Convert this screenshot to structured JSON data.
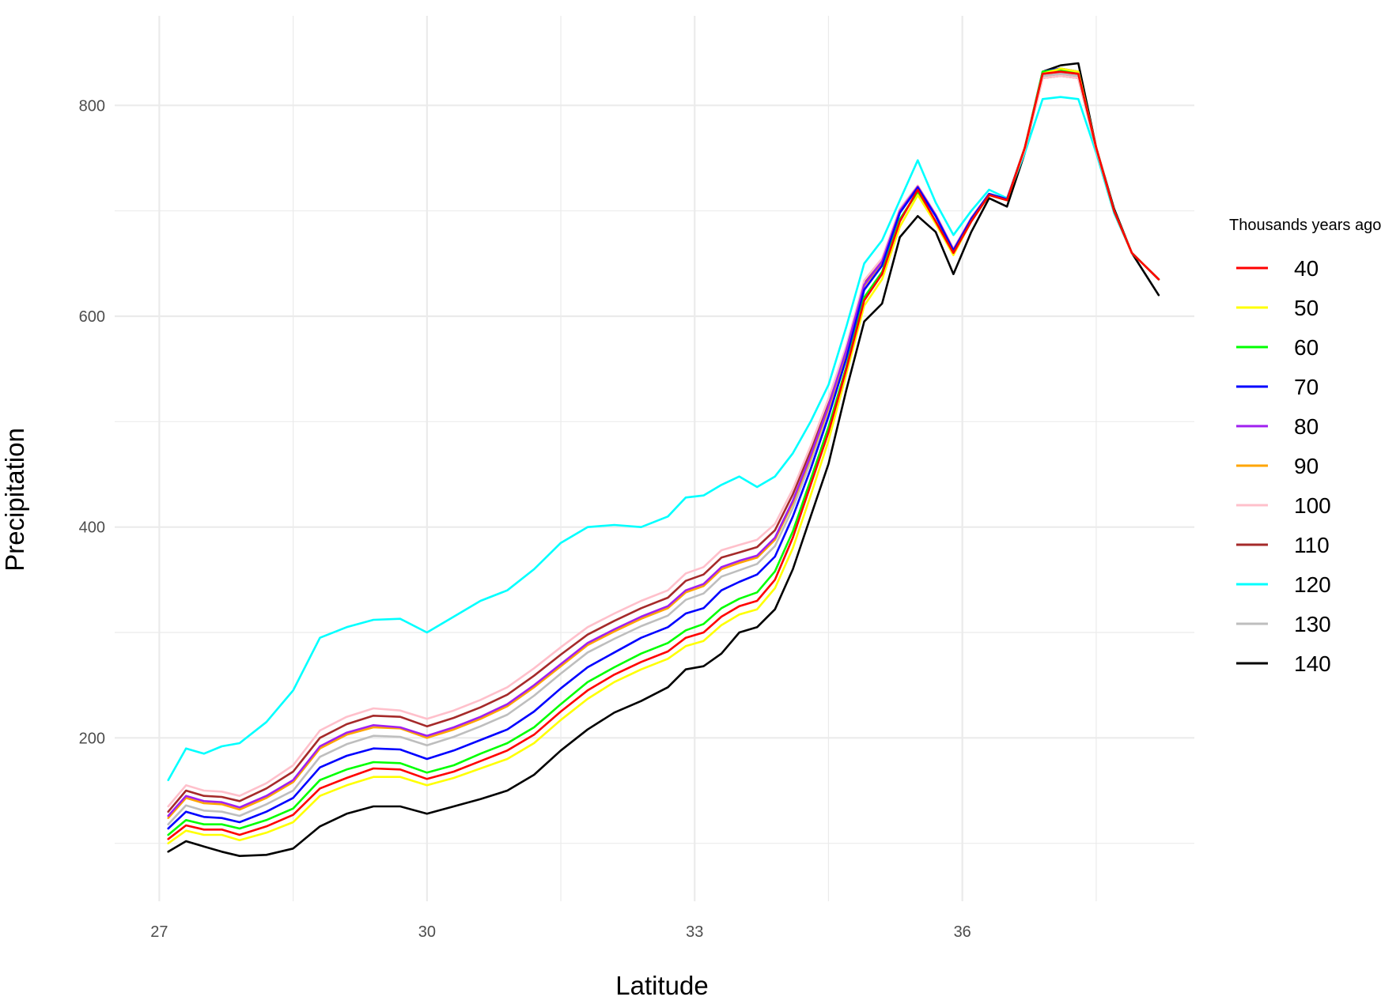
{
  "chart_data": {
    "type": "line",
    "xlabel": "Latitude",
    "ylabel": "Precipitation",
    "legend_title": "Thousands years ago",
    "legend_position": "right",
    "grid": true,
    "xlim": [
      26.5,
      38.6
    ],
    "ylim": [
      45,
      885
    ],
    "xticks": [
      27,
      30,
      33,
      36
    ],
    "yticks": [
      200,
      400,
      600,
      800
    ],
    "x": [
      27.1,
      27.3,
      27.5,
      27.7,
      27.9,
      28.2,
      28.5,
      28.8,
      29.1,
      29.4,
      29.7,
      30.0,
      30.3,
      30.6,
      30.9,
      31.2,
      31.5,
      31.8,
      32.1,
      32.4,
      32.7,
      32.9,
      33.1,
      33.3,
      33.5,
      33.7,
      33.9,
      34.1,
      34.3,
      34.5,
      34.7,
      34.9,
      35.1,
      35.3,
      35.5,
      35.7,
      35.9,
      36.1,
      36.3,
      36.5,
      36.7,
      36.9,
      37.1,
      37.3,
      37.5,
      37.7,
      37.9,
      38.2
    ],
    "series": [
      {
        "name": "40",
        "color": "#ff0000",
        "values": [
          104,
          117,
          113,
          113,
          108,
          116,
          127,
          152,
          162,
          171,
          170,
          161,
          168,
          178,
          188,
          203,
          225,
          245,
          260,
          272,
          282,
          295,
          300,
          315,
          325,
          330,
          350,
          390,
          440,
          490,
          550,
          615,
          640,
          690,
          720,
          690,
          660,
          690,
          715,
          710,
          760,
          830,
          832,
          830,
          760,
          700,
          660,
          635
        ]
      },
      {
        "name": "50",
        "color": "#ffff00",
        "values": [
          100,
          112,
          108,
          108,
          103,
          110,
          120,
          145,
          155,
          163,
          163,
          155,
          162,
          171,
          180,
          195,
          217,
          237,
          253,
          265,
          275,
          287,
          292,
          307,
          317,
          322,
          342,
          380,
          430,
          482,
          545,
          610,
          635,
          685,
          715,
          688,
          658,
          690,
          715,
          710,
          760,
          830,
          835,
          832,
          760,
          700,
          660,
          635
        ]
      },
      {
        "name": "60",
        "color": "#00ff00",
        "values": [
          108,
          122,
          118,
          118,
          114,
          122,
          133,
          160,
          170,
          177,
          176,
          167,
          174,
          185,
          195,
          210,
          232,
          253,
          267,
          280,
          290,
          302,
          308,
          323,
          332,
          338,
          358,
          396,
          445,
          495,
          552,
          618,
          642,
          692,
          718,
          690,
          660,
          690,
          715,
          710,
          760,
          832,
          834,
          830,
          760,
          700,
          660,
          635
        ]
      },
      {
        "name": "70",
        "color": "#0000ff",
        "values": [
          114,
          130,
          125,
          124,
          120,
          130,
          143,
          172,
          183,
          190,
          189,
          180,
          188,
          198,
          208,
          225,
          247,
          267,
          281,
          295,
          305,
          318,
          323,
          340,
          348,
          355,
          372,
          410,
          455,
          505,
          560,
          625,
          648,
          698,
          722,
          695,
          662,
          692,
          716,
          711,
          760,
          832,
          835,
          832,
          760,
          700,
          660,
          635
        ]
      },
      {
        "name": "80",
        "color": "#a020f0",
        "values": [
          126,
          145,
          140,
          139,
          134,
          145,
          160,
          192,
          205,
          212,
          210,
          202,
          210,
          220,
          232,
          250,
          270,
          290,
          303,
          315,
          325,
          340,
          346,
          362,
          368,
          373,
          390,
          425,
          468,
          515,
          568,
          630,
          652,
          700,
          723,
          696,
          663,
          693,
          716,
          711,
          760,
          830,
          832,
          830,
          760,
          700,
          660,
          635
        ]
      },
      {
        "name": "90",
        "color": "#ffa500",
        "values": [
          124,
          143,
          138,
          137,
          132,
          143,
          158,
          190,
          203,
          210,
          209,
          200,
          208,
          218,
          230,
          248,
          268,
          288,
          301,
          313,
          323,
          338,
          344,
          360,
          366,
          371,
          388,
          423,
          466,
          513,
          566,
          629,
          651,
          700,
          723,
          696,
          663,
          693,
          716,
          711,
          760,
          830,
          832,
          830,
          760,
          700,
          660,
          635
        ]
      },
      {
        "name": "100",
        "color": "#ffc0cb",
        "values": [
          135,
          155,
          150,
          149,
          145,
          157,
          174,
          207,
          220,
          228,
          226,
          218,
          226,
          236,
          248,
          266,
          286,
          305,
          318,
          330,
          340,
          356,
          362,
          378,
          383,
          388,
          403,
          436,
          477,
          522,
          572,
          634,
          655,
          702,
          724,
          697,
          664,
          693,
          716,
          711,
          758,
          826,
          828,
          826,
          758,
          700,
          660,
          635
        ]
      },
      {
        "name": "110",
        "color": "#a52a2a",
        "values": [
          130,
          150,
          145,
          144,
          140,
          152,
          168,
          200,
          213,
          221,
          220,
          211,
          219,
          229,
          241,
          259,
          279,
          298,
          311,
          323,
          333,
          349,
          355,
          371,
          376,
          381,
          397,
          431,
          473,
          519,
          570,
          632,
          654,
          701,
          723,
          696,
          663,
          693,
          716,
          711,
          758,
          826,
          828,
          826,
          758,
          700,
          660,
          635
        ]
      },
      {
        "name": "120",
        "color": "#00ffff",
        "values": [
          160,
          190,
          185,
          192,
          195,
          215,
          245,
          295,
          305,
          312,
          313,
          300,
          315,
          330,
          340,
          360,
          385,
          400,
          402,
          400,
          410,
          428,
          430,
          440,
          448,
          438,
          448,
          470,
          500,
          535,
          590,
          650,
          672,
          710,
          748,
          708,
          677,
          700,
          720,
          712,
          755,
          806,
          808,
          806,
          755,
          698,
          660,
          635
        ]
      },
      {
        "name": "130",
        "color": "#bebebe",
        "values": [
          118,
          136,
          131,
          130,
          126,
          137,
          150,
          182,
          194,
          202,
          201,
          193,
          201,
          211,
          222,
          240,
          261,
          281,
          294,
          306,
          316,
          331,
          337,
          353,
          359,
          365,
          382,
          418,
          462,
          510,
          564,
          627,
          650,
          699,
          722,
          695,
          662,
          692,
          716,
          711,
          758,
          828,
          830,
          828,
          758,
          700,
          660,
          635
        ]
      },
      {
        "name": "140",
        "color": "#000000",
        "values": [
          92,
          102,
          97,
          92,
          88,
          89,
          95,
          116,
          128,
          135,
          135,
          128,
          135,
          142,
          150,
          165,
          188,
          208,
          224,
          235,
          248,
          265,
          268,
          280,
          300,
          305,
          322,
          360,
          410,
          460,
          530,
          595,
          612,
          675,
          695,
          680,
          640,
          680,
          712,
          704,
          755,
          832,
          838,
          840,
          760,
          702,
          660,
          620
        ]
      }
    ]
  }
}
